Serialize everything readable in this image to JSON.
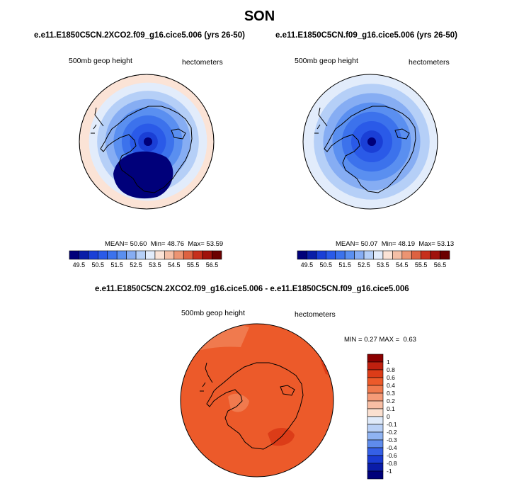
{
  "figure": {
    "title": "SON"
  },
  "chart_data": [
    {
      "type": "heatmap",
      "projection": "south-polar-stereographic",
      "title": "e.e11.E1850C5CN.2XCO2.f09_g16.cice5.006 (yrs 26-50)",
      "left_label": "500mb geop height",
      "right_label": "hectometers",
      "stats": {
        "mean_label": "MEAN=",
        "mean": "50.60",
        "min_label": "Min=",
        "min": "48.76",
        "max_label": "Max=",
        "max": "53.59"
      },
      "colorbar": {
        "orientation": "horizontal",
        "levels": [
          "49.5",
          "50",
          "50.5",
          "51",
          "51.5",
          "52",
          "52.5",
          "53",
          "53.5",
          "54",
          "54.5",
          "55",
          "55.5",
          "56",
          "56.5"
        ],
        "tick_labels": [
          "49.5",
          "50.5",
          "51.5",
          "52.5",
          "53.5",
          "54.5",
          "55.5",
          "56.5"
        ],
        "colors": [
          "#00007a",
          "#0a1ea8",
          "#1a3fd6",
          "#2a5ae8",
          "#3c72ec",
          "#5a8ff0",
          "#86adf3",
          "#b5cff7",
          "#e2ecfb",
          "#fbe3d6",
          "#f5bfa6",
          "#ec9472",
          "#dd6241",
          "#c62f1c",
          "#a0120c",
          "#6b0000"
        ]
      },
      "field_rings": [
        {
          "level": "53.0-53.5",
          "color": "#fbe3d6"
        },
        {
          "level": "52.5-53.0",
          "color": "#e2ecfb"
        },
        {
          "level": "52.0-52.5",
          "color": "#b5cff7"
        },
        {
          "level": "51.5-52.0",
          "color": "#86adf3"
        },
        {
          "level": "51.0-51.5",
          "color": "#5a8ff0"
        },
        {
          "level": "50.5-51.0",
          "color": "#3c72ec"
        },
        {
          "level": "50.0-50.5",
          "color": "#2a5ae8"
        },
        {
          "level": "49.5-50.0",
          "color": "#1a3fd6"
        },
        {
          "level": "49.0-49.5",
          "color": "#0a1ea8"
        },
        {
          "level": "<49.0",
          "color": "#00007a"
        }
      ]
    },
    {
      "type": "heatmap",
      "projection": "south-polar-stereographic",
      "title": "e.e11.E1850C5CN.f09_g16.cice5.006 (yrs 26-50)",
      "left_label": "500mb geop height",
      "right_label": "hectometers",
      "stats": {
        "mean_label": "MEAN=",
        "mean": "50.07",
        "min_label": "Min=",
        "min": "48.19",
        "max_label": "Max=",
        "max": "53.13"
      },
      "colorbar": {
        "orientation": "horizontal",
        "levels": [
          "49.5",
          "50",
          "50.5",
          "51",
          "51.5",
          "52",
          "52.5",
          "53",
          "53.5",
          "54",
          "54.5",
          "55",
          "55.5",
          "56",
          "56.5"
        ],
        "tick_labels": [
          "49.5",
          "50.5",
          "51.5",
          "52.5",
          "53.5",
          "54.5",
          "55.5",
          "56.5"
        ],
        "colors": [
          "#00007a",
          "#0a1ea8",
          "#1a3fd6",
          "#2a5ae8",
          "#3c72ec",
          "#5a8ff0",
          "#86adf3",
          "#b5cff7",
          "#e2ecfb",
          "#fbe3d6",
          "#f5bfa6",
          "#ec9472",
          "#dd6241",
          "#c62f1c",
          "#a0120c",
          "#6b0000"
        ]
      },
      "field_rings": [
        {
          "level": "52.5-53.0",
          "color": "#e2ecfb"
        },
        {
          "level": "52.0-52.5",
          "color": "#b5cff7"
        },
        {
          "level": "51.5-52.0",
          "color": "#86adf3"
        },
        {
          "level": "51.0-51.5",
          "color": "#5a8ff0"
        },
        {
          "level": "50.5-51.0",
          "color": "#3c72ec"
        },
        {
          "level": "50.0-50.5",
          "color": "#2a5ae8"
        },
        {
          "level": "49.5-50.0",
          "color": "#1a3fd6"
        },
        {
          "level": "49.0-49.5",
          "color": "#0a1ea8"
        },
        {
          "level": "<49.0",
          "color": "#00007a"
        }
      ]
    },
    {
      "type": "heatmap",
      "projection": "south-polar-stereographic",
      "title": "e.e11.E1850C5CN.2XCO2.f09_g16.cice5.006 - e.e11.E1850C5CN.f09_g16.cice5.006",
      "left_label": "500mb geop height",
      "right_label": "hectometers",
      "stats": {
        "min_label": "MIN =",
        "min": "0.27",
        "max_label": "MAX =",
        "max": "0.63"
      },
      "colorbar": {
        "orientation": "vertical",
        "levels": [
          "1",
          "0.8",
          "0.6",
          "0.4",
          "0.3",
          "0.2",
          "0.1",
          "0",
          "-0.1",
          "-0.2",
          "-0.3",
          "-0.4",
          "-0.6",
          "-0.8",
          "-1"
        ],
        "colors": [
          "#8b0000",
          "#c0200f",
          "#dc3c18",
          "#ec5a2a",
          "#f07a4e",
          "#f59b78",
          "#f8bea4",
          "#fbe0d0",
          "#dfeafa",
          "#b9d0f6",
          "#8fb3f2",
          "#5f8cec",
          "#3560e6",
          "#1a3bd2",
          "#0a1ca8",
          "#00007a"
        ]
      },
      "field": {
        "base": "0.4-0.6",
        "base_color": "#ec5a2a",
        "patches": [
          {
            "level": "0.3-0.4",
            "color": "#f07a4e"
          },
          {
            "level": "0.6-0.8",
            "color": "#dc3c18"
          }
        ]
      }
    }
  ]
}
